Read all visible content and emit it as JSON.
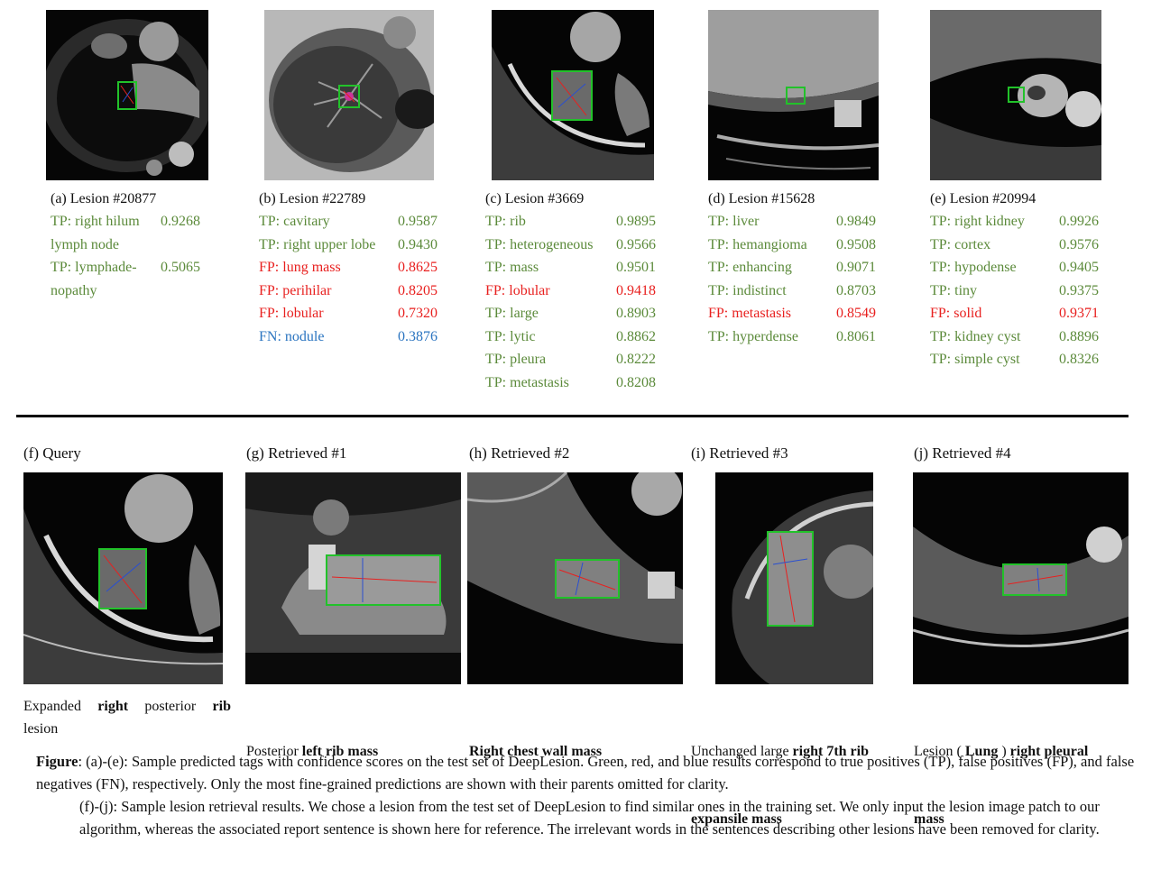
{
  "panels_top": [
    {
      "caption": "(a) Lesion #20877",
      "tags": [
        {
          "kind": "TP",
          "text": "TP: right hilum",
          "score": "0.9268"
        },
        {
          "kind": "TP",
          "text": "lymph node",
          "score": ""
        },
        {
          "kind": "TP",
          "text": "TP:  lymphade-",
          "score": "0.5065"
        },
        {
          "kind": "TP",
          "text": "nopathy",
          "score": ""
        }
      ]
    },
    {
      "caption": "(b) Lesion #22789",
      "tags": [
        {
          "kind": "TP",
          "text": "TP: cavitary",
          "score": "0.9587"
        },
        {
          "kind": "TP",
          "text": "TP: right upper lobe",
          "score": "0.9430"
        },
        {
          "kind": "FP",
          "text": "FP: lung mass",
          "score": "0.8625"
        },
        {
          "kind": "FP",
          "text": "FP: perihilar",
          "score": "0.8205"
        },
        {
          "kind": "FP",
          "text": "FP: lobular",
          "score": "0.7320"
        },
        {
          "kind": "FN",
          "text": "FN: nodule",
          "score": "0.3876"
        }
      ]
    },
    {
      "caption": "(c) Lesion #3669",
      "tags": [
        {
          "kind": "TP",
          "text": "TP: rib",
          "score": "0.9895"
        },
        {
          "kind": "TP",
          "text": "TP: heterogeneous",
          "score": "0.9566"
        },
        {
          "kind": "TP",
          "text": "TP: mass",
          "score": "0.9501"
        },
        {
          "kind": "FP",
          "text": "FP: lobular",
          "score": "0.9418"
        },
        {
          "kind": "TP",
          "text": "TP: large",
          "score": "0.8903"
        },
        {
          "kind": "TP",
          "text": "TP: lytic",
          "score": "0.8862"
        },
        {
          "kind": "TP",
          "text": "TP: pleura",
          "score": "0.8222"
        },
        {
          "kind": "TP",
          "text": "TP: metastasis",
          "score": "0.8208"
        }
      ]
    },
    {
      "caption": "(d) Lesion #15628",
      "tags": [
        {
          "kind": "TP",
          "text": "TP: liver",
          "score": "0.9849"
        },
        {
          "kind": "TP",
          "text": "TP: hemangioma",
          "score": "0.9508"
        },
        {
          "kind": "TP",
          "text": "TP: enhancing",
          "score": "0.9071"
        },
        {
          "kind": "TP",
          "text": "TP: indistinct",
          "score": "0.8703"
        },
        {
          "kind": "FP",
          "text": "FP: metastasis",
          "score": "0.8549"
        },
        {
          "kind": "TP",
          "text": "TP: hyperdense",
          "score": "0.8061"
        }
      ]
    },
    {
      "caption": "(e) Lesion #20994",
      "tags": [
        {
          "kind": "TP",
          "text": "TP: right kidney",
          "score": "0.9926"
        },
        {
          "kind": "TP",
          "text": "TP: cortex",
          "score": "0.9576"
        },
        {
          "kind": "TP",
          "text": "TP: hypodense",
          "score": "0.9405"
        },
        {
          "kind": "TP",
          "text": "TP: tiny",
          "score": "0.9375"
        },
        {
          "kind": "FP",
          "text": "FP: solid",
          "score": "0.9371"
        },
        {
          "kind": "TP",
          "text": "TP: kidney cyst",
          "score": "0.8896"
        },
        {
          "kind": "TP",
          "text": "TP: simple cyst",
          "score": "0.8326"
        }
      ]
    }
  ],
  "panels_bottom": [
    {
      "title": "(f) Query",
      "lines": [
        [
          {
            "t": "Expanded ",
            "b": false
          },
          {
            "t": "right",
            "b": true
          },
          {
            "t": " posterior ",
            "b": false
          },
          {
            "t": "rib",
            "b": true
          }
        ],
        [
          {
            "t": "lesion",
            "b": false
          }
        ]
      ]
    },
    {
      "title": "(g) Retrieved #1",
      "lines": [
        [
          {
            "t": "Posterior ",
            "b": false
          },
          {
            "t": "left rib mass",
            "b": true
          }
        ]
      ]
    },
    {
      "title": "(h) Retrieved #2",
      "lines": [
        [
          {
            "t": "Right chest wall mass",
            "b": true
          }
        ]
      ]
    },
    {
      "title": "(i) Retrieved #3",
      "lines": [
        [
          {
            "t": "Unchanged large ",
            "b": false
          },
          {
            "t": "right 7th rib",
            "b": true
          }
        ],
        [
          {
            "t": "expansile mass",
            "b": true
          }
        ]
      ]
    },
    {
      "title": "(j) Retrieved #4",
      "lines": [
        [
          {
            "t": "Lesion ( ",
            "b": false
          },
          {
            "t": "Lung",
            "b": true
          },
          {
            "t": " ) ",
            "b": false
          },
          {
            "t": "right pleural",
            "b": true
          }
        ],
        [
          {
            "t": "mass",
            "b": true
          }
        ]
      ]
    }
  ],
  "note": {
    "lead": "Figure",
    "p1": ": (a)-(e): Sample predicted tags with confidence scores on the test set of DeepLesion. Green, red, and blue results correspond to true positives (TP), false positives (FP), and false negatives (FN), respectively. Only the most fine-grained predictions are shown with their parents omitted for clarity.",
    "p2": "(f)-(j): Sample lesion retrieval results. We chose a lesion from the test set of DeepLesion to find similar ones in the training set. We only input the lesion image patch to our algorithm, whereas the associated report sentence is shown here for reference. The irrelevant words in the sentences describing other lesions have been removed for clarity."
  },
  "colors": {
    "tp": "#5b8a3a",
    "fp": "#e8201f",
    "fn": "#2a74c0",
    "box": "#22c22a",
    "divider": "#000000"
  }
}
